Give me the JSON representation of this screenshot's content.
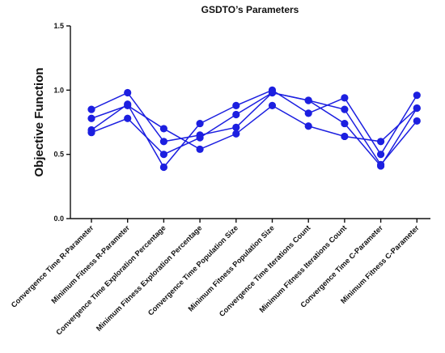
{
  "chart_data": {
    "type": "line",
    "title": "GSDTO’s Parameters",
    "xlabel": "",
    "ylabel": "Objective Function",
    "ylim": [
      0,
      1.5
    ],
    "yticks": [
      "0.0",
      "0.5",
      "1.0",
      "1.5"
    ],
    "categories": [
      "Convergence Time R-Parameter",
      "Minimum Fitness R-Parameter",
      "Convergence Time Exploration Percentage",
      "Minimum Fitness Exploration Percentage",
      "Convergence Time Population Size",
      "Minimum Fitness Population Size",
      "Convergence Time Iterations Count",
      "Minimum Fitness Iterations Count",
      "Convergence Time C-Parameter",
      "Minimum Fitness C-Parameter"
    ],
    "series": [
      {
        "values": [
          0.85,
          0.98,
          0.6,
          0.65,
          0.71,
          0.98,
          0.92,
          0.85,
          0.42,
          0.76
        ]
      },
      {
        "values": [
          0.78,
          0.88,
          0.7,
          0.54,
          0.66,
          0.88,
          0.72,
          0.64,
          0.6,
          0.86
        ]
      },
      {
        "values": [
          0.69,
          0.89,
          0.4,
          0.74,
          0.88,
          1.0,
          0.82,
          0.94,
          0.5,
          0.96
        ]
      },
      {
        "values": [
          0.67,
          0.78,
          0.5,
          0.63,
          0.81,
          0.98,
          0.92,
          0.74,
          0.41,
          0.86
        ]
      }
    ],
    "color": "#1c1fe0",
    "grid": false,
    "legend": false
  }
}
